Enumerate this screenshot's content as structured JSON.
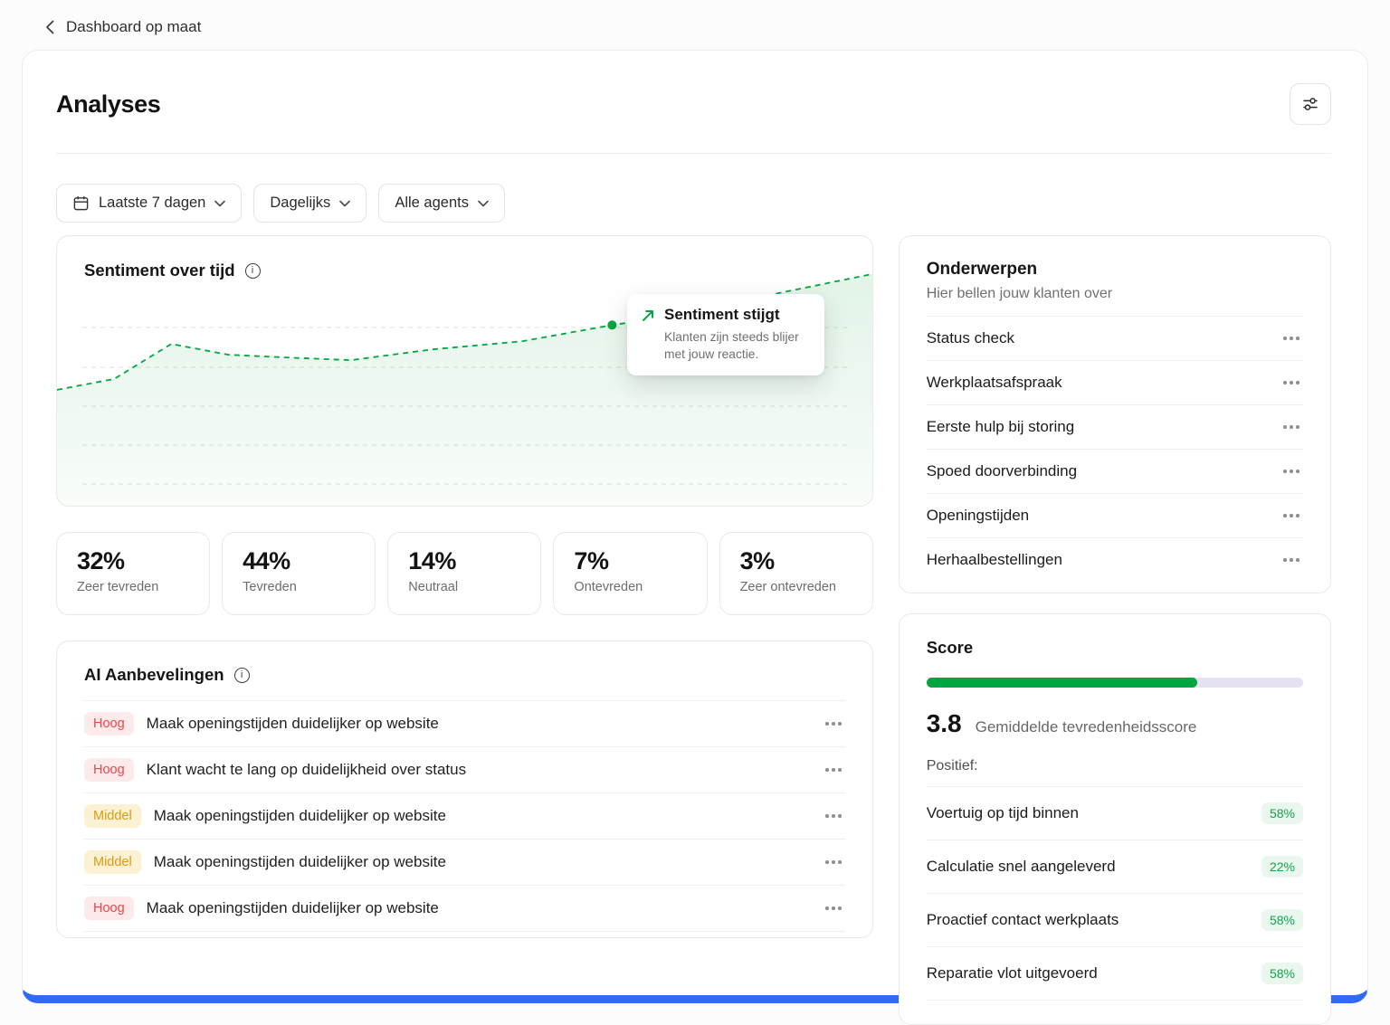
{
  "colors": {
    "accent_green": "#00a63e",
    "accent_blue": "#2f6bf6",
    "badge_high_bg": "#fdeaea",
    "badge_high_text": "#e5484d",
    "badge_mid_bg": "#fcf1d2",
    "badge_mid_text": "#dd9a12",
    "pct_badge_bg": "#e9f7ee",
    "pct_badge_text": "#13a24b",
    "progress_track": "#e6e2f4"
  },
  "top_nav": {
    "back_label": "Dashboard op maat"
  },
  "page": {
    "title": "Analyses"
  },
  "filters": {
    "period": "Laatste 7 dagen",
    "granularity": "Dagelijks",
    "agents": "Alle agents"
  },
  "sentiment": {
    "title": "Sentiment over tijd",
    "tooltip_title": "Sentiment stijgt",
    "tooltip_body": "Klanten zijn steeds blijer met jouw reactie."
  },
  "chart_data": {
    "type": "line",
    "title": "Sentiment over tijd",
    "line_style": "dashed",
    "color": "#00a63e",
    "x": [
      0,
      7,
      14,
      21,
      28,
      36,
      46,
      57,
      68,
      77,
      87,
      100
    ],
    "y": [
      43,
      47,
      60,
      56,
      55,
      54,
      58,
      61,
      67,
      71,
      78,
      86
    ],
    "ylim": [
      0,
      100
    ],
    "grid": "horizontal-dashed",
    "marker_index": 8,
    "annotation": {
      "title": "Sentiment stijgt",
      "body": "Klanten zijn steeds blijer met jouw reactie.",
      "anchor_x": 68
    }
  },
  "stats": [
    {
      "value": "32%",
      "label": "Zeer tevreden"
    },
    {
      "value": "44%",
      "label": "Tevreden"
    },
    {
      "value": "14%",
      "label": "Neutraal"
    },
    {
      "value": "7%",
      "label": "Ontevreden"
    },
    {
      "value": "3%",
      "label": "Zeer ontevreden"
    }
  ],
  "recommendations": {
    "title": "AI Aanbevelingen",
    "items": [
      {
        "badge": "Hoog",
        "text": "Maak openingstijden duidelijker op website"
      },
      {
        "badge": "Hoog",
        "text": "Klant wacht te lang op duidelijkheid over status"
      },
      {
        "badge": "Middel",
        "text": "Maak openingstijden duidelijker op website"
      },
      {
        "badge": "Middel",
        "text": "Maak openingstijden duidelijker op website"
      },
      {
        "badge": "Hoog",
        "text": "Maak openingstijden duidelijker op website"
      }
    ]
  },
  "topics": {
    "title": "Onderwerpen",
    "subtitle": "Hier bellen jouw klanten over",
    "items": [
      {
        "label": "Status check"
      },
      {
        "label": "Werkplaatsafspraak"
      },
      {
        "label": "Eerste hulp bij storing"
      },
      {
        "label": "Spoed doorverbinding"
      },
      {
        "label": "Openingstijden"
      },
      {
        "label": "Herhaalbestellingen"
      }
    ]
  },
  "score": {
    "title": "Score",
    "progress_pct": 72,
    "value": "3.8",
    "value_label": "Gemiddelde tevredenheidsscore",
    "positive_label": "Positief:",
    "items": [
      {
        "label": "Voertuig op tijd binnen",
        "value": "58%"
      },
      {
        "label": "Calculatie snel aangeleverd",
        "value": "22%"
      },
      {
        "label": "Proactief contact werkplaats",
        "value": "58%"
      },
      {
        "label": "Reparatie vlot uitgevoerd",
        "value": "58%"
      }
    ]
  }
}
